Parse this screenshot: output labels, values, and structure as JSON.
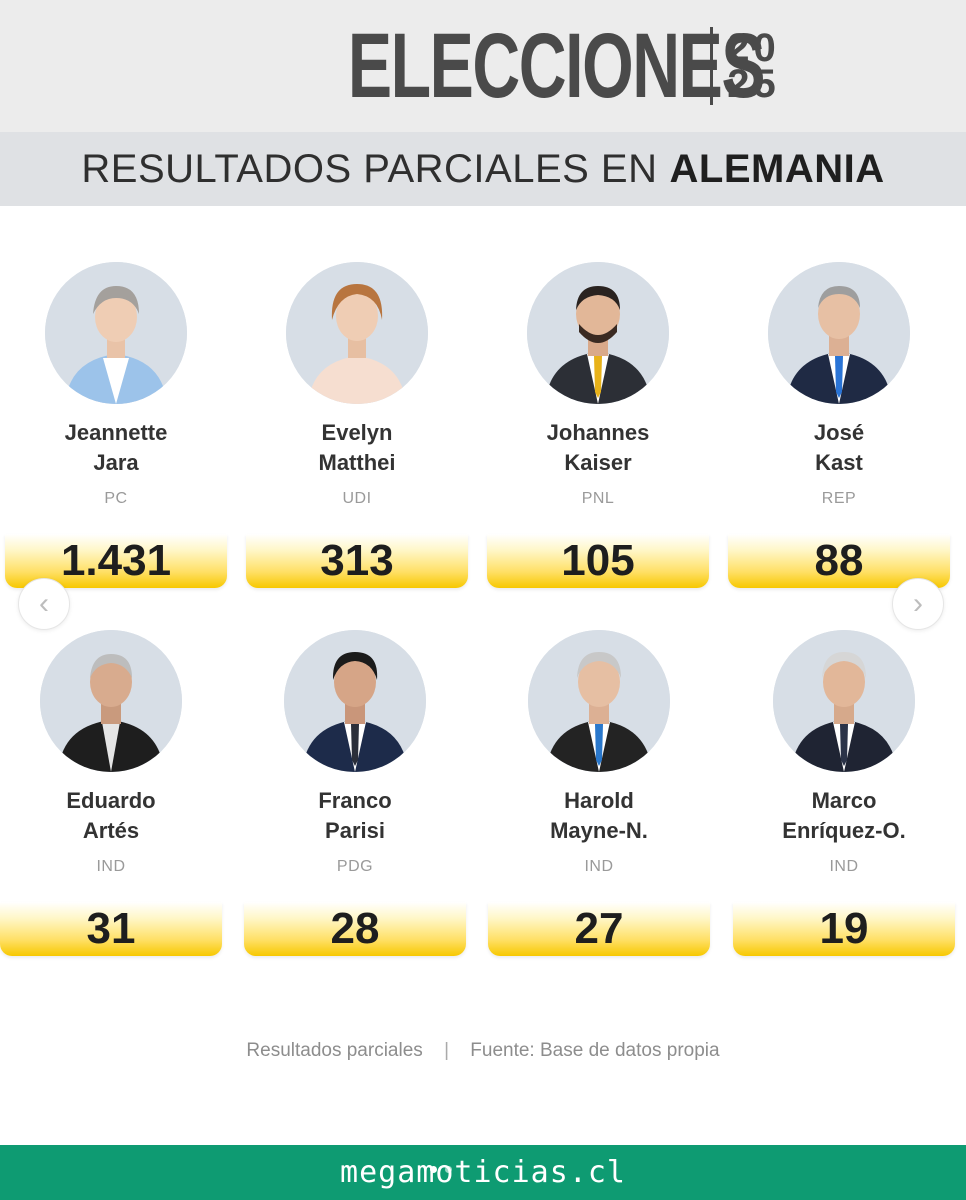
{
  "header": {
    "brand": "ELECCIONES",
    "year_top": "20",
    "year_bottom": "25",
    "subtitle_prefix": "RESULTADOS PARCIALES EN",
    "subtitle_country": "ALEMANIA"
  },
  "candidates": [
    {
      "first": "Jeannette",
      "last": "Jara",
      "party": "PC",
      "votes": "1.431"
    },
    {
      "first": "Evelyn",
      "last": "Matthei",
      "party": "UDI",
      "votes": "313"
    },
    {
      "first": "Johannes",
      "last": "Kaiser",
      "party": "PNL",
      "votes": "105"
    },
    {
      "first": "José",
      "last": "Kast",
      "party": "REP",
      "votes": "88"
    },
    {
      "first": "Eduardo",
      "last": "Artés",
      "party": "IND",
      "votes": "31"
    },
    {
      "first": "Franco",
      "last": "Parisi",
      "party": "PDG",
      "votes": "28"
    },
    {
      "first": "Harold",
      "last": "Mayne-N.",
      "party": "IND",
      "votes": "27"
    },
    {
      "first": "Marco",
      "last": "Enríquez-O.",
      "party": "IND",
      "votes": "19"
    }
  ],
  "nav": {
    "prev_icon": "chevron-left-icon",
    "next_icon": "chevron-right-icon"
  },
  "footer": {
    "note_left": "Resultados parciales",
    "note_sep": "|",
    "note_right": "Fuente: Base de datos propia",
    "site": "megamoticias.cl"
  },
  "colors": {
    "accent_green": "#0e9b72",
    "vote_yellow": "#ffe066",
    "avatar_bg": "#d7dee6"
  }
}
